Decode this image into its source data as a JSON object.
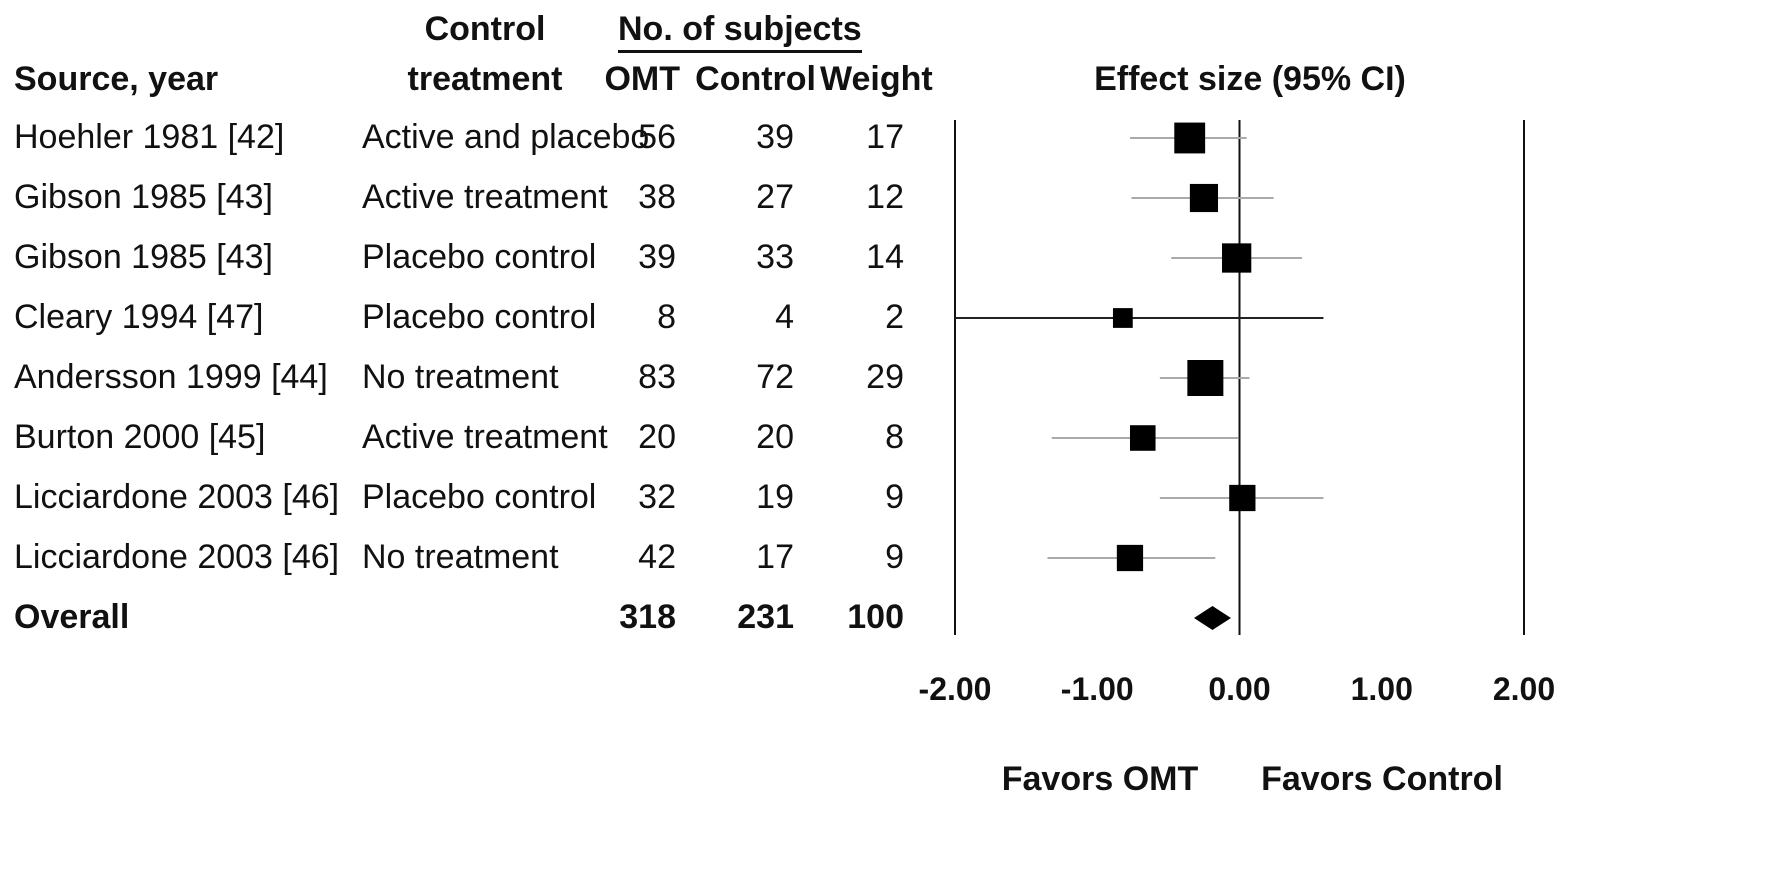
{
  "headers": {
    "source": "Source, year",
    "control_line1": "Control",
    "control_line2": "treatment",
    "subjects_group": "No. of subjects",
    "omt": "OMT",
    "control": "Control",
    "weight": "Weight",
    "effect": "Effect size (95% CI)"
  },
  "rows": [
    {
      "source": "Hoehler 1981 [42]",
      "treatment": "Active and placebo",
      "omt": "56",
      "control": "39",
      "weight": "17"
    },
    {
      "source": "Gibson 1985 [43]",
      "treatment": "Active treatment",
      "omt": "38",
      "control": "27",
      "weight": "12"
    },
    {
      "source": "Gibson 1985 [43]",
      "treatment": "Placebo control",
      "omt": "39",
      "control": "33",
      "weight": "14"
    },
    {
      "source": "Cleary 1994 [47]",
      "treatment": "Placebo control",
      "omt": "8",
      "control": "4",
      "weight": "2"
    },
    {
      "source": "Andersson 1999 [44]",
      "treatment": "No treatment",
      "omt": "83",
      "control": "72",
      "weight": "29"
    },
    {
      "source": "Burton 2000 [45]",
      "treatment": "Active treatment",
      "omt": "20",
      "control": "20",
      "weight": "8"
    },
    {
      "source": "Licciardone 2003 [46]",
      "treatment": "Placebo control",
      "omt": "32",
      "control": "19",
      "weight": "9"
    },
    {
      "source": "Licciardone 2003 [46]",
      "treatment": "No treatment",
      "omt": "42",
      "control": "17",
      "weight": "9"
    }
  ],
  "overall": {
    "source": "Overall",
    "omt": "318",
    "control": "231",
    "weight": "100"
  },
  "chart_data": {
    "type": "forest",
    "title": "",
    "xlabel": "Effect size (95% CI)",
    "xlim": [
      -2.0,
      2.0
    ],
    "x_ticks": [
      "-2.00",
      "-1.00",
      "0.00",
      "1.00",
      "2.00"
    ],
    "x_tick_values": [
      -2.0,
      -1.0,
      0.0,
      1.0,
      2.0
    ],
    "favors_left": "Favors OMT",
    "favors_right": "Favors Control",
    "studies": [
      {
        "label": "Hoehler 1981 [42]",
        "estimate": -0.35,
        "lower": -0.77,
        "upper": 0.05,
        "weight": 17
      },
      {
        "label": "Gibson 1985 [43]",
        "estimate": -0.25,
        "lower": -0.76,
        "upper": 0.24,
        "weight": 12
      },
      {
        "label": "Gibson 1985 [43]",
        "estimate": -0.02,
        "lower": -0.48,
        "upper": 0.44,
        "weight": 14
      },
      {
        "label": "Cleary 1994 [47]",
        "estimate": -0.82,
        "lower": -2.0,
        "upper": 0.59,
        "weight": 2
      },
      {
        "label": "Andersson 1999 [44]",
        "estimate": -0.24,
        "lower": -0.56,
        "upper": 0.07,
        "weight": 29
      },
      {
        "label": "Burton 2000 [45]",
        "estimate": -0.68,
        "lower": -1.32,
        "upper": -0.01,
        "weight": 8
      },
      {
        "label": "Licciardone 2003 [46]",
        "estimate": 0.02,
        "lower": -0.56,
        "upper": 0.59,
        "weight": 9
      },
      {
        "label": "Licciardone 2003 [46]",
        "estimate": -0.77,
        "lower": -1.35,
        "upper": -0.17,
        "weight": 9
      }
    ],
    "overall": {
      "label": "Overall",
      "estimate": -0.19,
      "lower": -0.32,
      "upper": -0.06
    }
  }
}
